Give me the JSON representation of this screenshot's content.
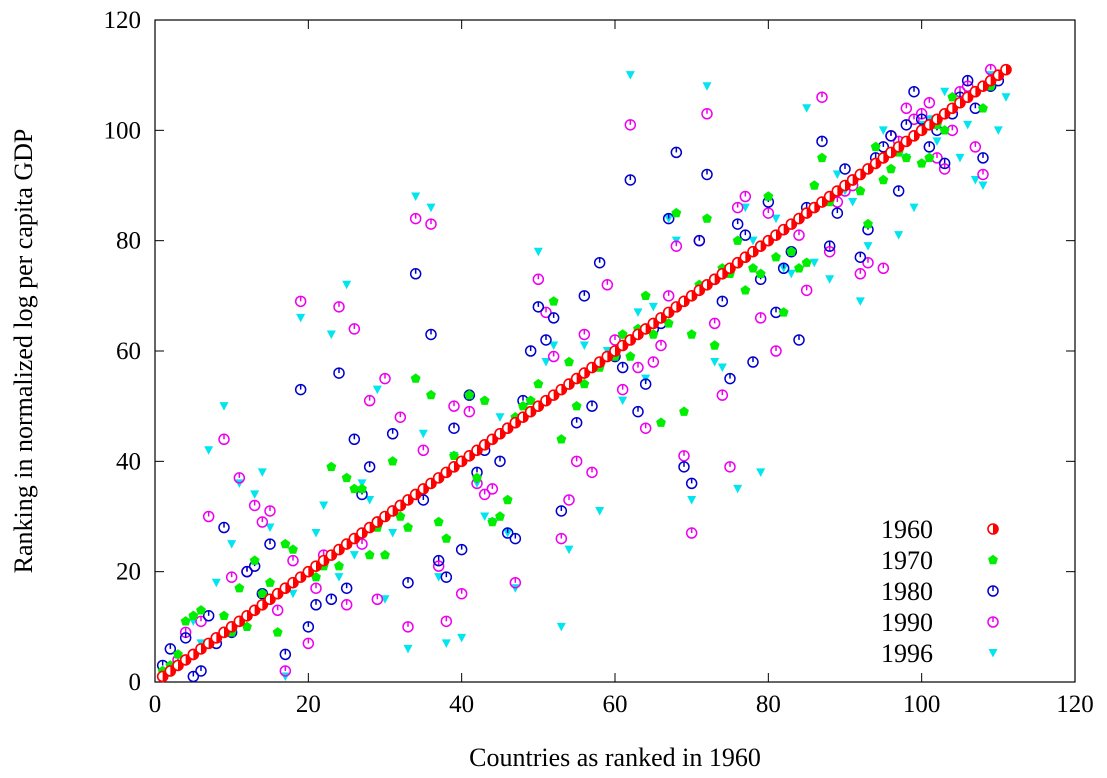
{
  "chart_data": {
    "type": "scatter",
    "title": "",
    "xlabel": "Countries as ranked in 1960",
    "ylabel": "Ranking in normalized log per capita GDP",
    "xlim": [
      0,
      120
    ],
    "ylim": [
      0,
      120
    ],
    "x_ticks": [
      0,
      20,
      40,
      60,
      80,
      100,
      120
    ],
    "y_ticks": [
      0,
      20,
      40,
      60,
      80,
      100,
      120
    ],
    "grid": false,
    "legend_position": "bottom-right",
    "diagonal_count": 111,
    "series": [
      {
        "name": "1960",
        "color": "#ff0000",
        "marker": "half-filled-circle",
        "x": [],
        "y": []
      },
      {
        "name": "1970",
        "color": "#00ee00",
        "marker": "filled-pentagon",
        "x": [
          1,
          2,
          3,
          4,
          5,
          6,
          8,
          9,
          10,
          11,
          12,
          13,
          14,
          15,
          16,
          17,
          18,
          20,
          21,
          22,
          23,
          24,
          25,
          26,
          27,
          28,
          29,
          30,
          31,
          32,
          33,
          34,
          35,
          36,
          37,
          38,
          39,
          41,
          42,
          43,
          44,
          45,
          46,
          47,
          48,
          49,
          50,
          52,
          53,
          54,
          55,
          56,
          57,
          58,
          60,
          61,
          62,
          63,
          64,
          65,
          66,
          67,
          68,
          69,
          70,
          71,
          72,
          73,
          74,
          75,
          76,
          77,
          78,
          79,
          80,
          81,
          82,
          83,
          84,
          85,
          86,
          87,
          88,
          90,
          91,
          92,
          93,
          94,
          95,
          96,
          97,
          98,
          99,
          100,
          101,
          102,
          103,
          104,
          105,
          106,
          107,
          108,
          109,
          110,
          111
        ],
        "y": [
          2,
          3,
          5,
          11,
          12,
          13,
          8,
          12,
          9,
          17,
          10,
          22,
          16,
          18,
          9,
          25,
          24,
          20,
          19,
          21,
          39,
          21,
          37,
          35,
          35,
          23,
          28,
          23,
          40,
          30,
          28,
          55,
          35,
          52,
          29,
          26,
          41,
          52,
          37,
          51,
          29,
          30,
          33,
          48,
          50,
          51,
          54,
          69,
          44,
          58,
          50,
          54,
          57,
          57,
          59,
          63,
          59,
          64,
          70,
          63,
          47,
          65,
          85,
          49,
          63,
          72,
          84,
          61,
          75,
          74,
          80,
          71,
          75,
          74,
          88,
          77,
          67,
          78,
          75,
          76,
          90,
          95,
          87,
          90,
          91,
          89,
          83,
          97,
          91,
          93,
          96,
          95,
          99,
          94,
          95,
          101,
          100,
          106,
          105,
          106,
          107,
          104,
          108,
          110,
          111
        ]
      },
      {
        "name": "1980",
        "color": "#0000cc",
        "marker": "open-circle-tick",
        "x": [
          1,
          2,
          4,
          5,
          6,
          7,
          8,
          9,
          10,
          12,
          13,
          14,
          15,
          17,
          19,
          20,
          21,
          23,
          24,
          25,
          26,
          27,
          28,
          29,
          31,
          32,
          33,
          34,
          35,
          36,
          37,
          38,
          39,
          40,
          41,
          42,
          43,
          45,
          46,
          47,
          48,
          49,
          50,
          51,
          52,
          53,
          55,
          56,
          57,
          58,
          60,
          61,
          62,
          63,
          64,
          65,
          66,
          67,
          68,
          69,
          70,
          71,
          72,
          73,
          74,
          75,
          76,
          77,
          78,
          79,
          80,
          81,
          82,
          83,
          84,
          85,
          87,
          88,
          89,
          90,
          91,
          92,
          93,
          94,
          95,
          96,
          97,
          98,
          99,
          100,
          101,
          102,
          103,
          104,
          105,
          106,
          107,
          108,
          109,
          110
        ],
        "y": [
          3,
          6,
          8,
          1,
          2,
          12,
          7,
          28,
          9,
          20,
          21,
          16,
          25,
          5,
          53,
          10,
          14,
          15,
          56,
          17,
          44,
          34,
          39,
          29,
          45,
          32,
          18,
          74,
          33,
          63,
          22,
          19,
          46,
          24,
          52,
          38,
          42,
          40,
          27,
          26,
          51,
          60,
          68,
          62,
          66,
          31,
          47,
          70,
          50,
          76,
          59,
          57,
          91,
          49,
          54,
          64,
          65,
          84,
          96,
          39,
          36,
          80,
          92,
          73,
          69,
          55,
          83,
          81,
          58,
          73,
          87,
          67,
          75,
          78,
          62,
          86,
          98,
          79,
          85,
          93,
          91,
          77,
          82,
          95,
          97,
          99,
          89,
          101,
          107,
          102,
          97,
          100,
          94,
          103,
          106,
          109,
          104,
          95,
          108,
          109
        ]
      },
      {
        "name": "1990",
        "color": "#ee00ee",
        "marker": "open-circle-tick",
        "x": [
          1,
          3,
          4,
          5,
          6,
          7,
          8,
          9,
          10,
          11,
          12,
          13,
          14,
          15,
          16,
          17,
          18,
          19,
          20,
          21,
          22,
          24,
          25,
          26,
          27,
          28,
          29,
          30,
          32,
          33,
          34,
          35,
          36,
          37,
          38,
          39,
          40,
          41,
          42,
          43,
          44,
          45,
          46,
          47,
          50,
          51,
          52,
          53,
          54,
          55,
          56,
          57,
          59,
          60,
          61,
          62,
          63,
          64,
          65,
          66,
          67,
          68,
          69,
          70,
          71,
          72,
          73,
          74,
          75,
          76,
          77,
          79,
          80,
          81,
          82,
          84,
          85,
          87,
          88,
          89,
          90,
          91,
          92,
          93,
          95,
          96,
          97,
          98,
          99,
          100,
          101,
          102,
          103,
          104,
          105,
          106,
          107,
          108,
          109,
          110
        ],
        "y": [
          1,
          4,
          9,
          5,
          11,
          30,
          8,
          44,
          19,
          37,
          20,
          32,
          29,
          31,
          13,
          2,
          22,
          69,
          7,
          17,
          23,
          68,
          14,
          64,
          25,
          51,
          15,
          55,
          48,
          10,
          84,
          42,
          83,
          21,
          11,
          50,
          16,
          49,
          36,
          34,
          35,
          45,
          46,
          18,
          73,
          67,
          59,
          26,
          33,
          40,
          63,
          38,
          72,
          62,
          53,
          101,
          57,
          46,
          58,
          61,
          70,
          79,
          41,
          27,
          80,
          103,
          65,
          52,
          39,
          86,
          88,
          66,
          85,
          60,
          82,
          81,
          71,
          106,
          78,
          87,
          89,
          90,
          74,
          76,
          75,
          99,
          98,
          104,
          102,
          103,
          105,
          95,
          93,
          100,
          107,
          108,
          97,
          92,
          111,
          110
        ]
      },
      {
        "name": "1996",
        "color": "#00e5ee",
        "marker": "filled-triangle-down",
        "x": [
          2,
          3,
          5,
          6,
          7,
          8,
          9,
          10,
          11,
          13,
          14,
          15,
          17,
          18,
          19,
          21,
          22,
          23,
          24,
          25,
          26,
          27,
          28,
          29,
          30,
          31,
          33,
          34,
          35,
          36,
          37,
          38,
          39,
          40,
          42,
          43,
          44,
          45,
          46,
          47,
          50,
          51,
          52,
          53,
          54,
          56,
          58,
          59,
          61,
          62,
          63,
          64,
          65,
          67,
          68,
          70,
          72,
          73,
          74,
          76,
          77,
          78,
          79,
          81,
          82,
          83,
          85,
          86,
          88,
          89,
          90,
          91,
          92,
          93,
          94,
          95,
          96,
          97,
          98,
          99,
          100,
          101,
          102,
          103,
          104,
          105,
          106,
          107,
          108,
          109,
          110,
          111
        ],
        "y": [
          2,
          3,
          11,
          7,
          42,
          18,
          50,
          25,
          36,
          34,
          38,
          28,
          1,
          16,
          66,
          27,
          32,
          63,
          19,
          72,
          23,
          36,
          33,
          53,
          15,
          27,
          6,
          88,
          45,
          86,
          19,
          7,
          41,
          8,
          36,
          30,
          29,
          48,
          27,
          17,
          78,
          58,
          61,
          10,
          24,
          61,
          31,
          60,
          51,
          110,
          67,
          55,
          68,
          84,
          80,
          33,
          108,
          58,
          57,
          35,
          86,
          80,
          38,
          84,
          75,
          74,
          104,
          76,
          73,
          92,
          89,
          87,
          69,
          79,
          94,
          100,
          96,
          81,
          95,
          86,
          101,
          102,
          98,
          107,
          104,
          95,
          101,
          91,
          90,
          110,
          100,
          106
        ]
      }
    ]
  }
}
